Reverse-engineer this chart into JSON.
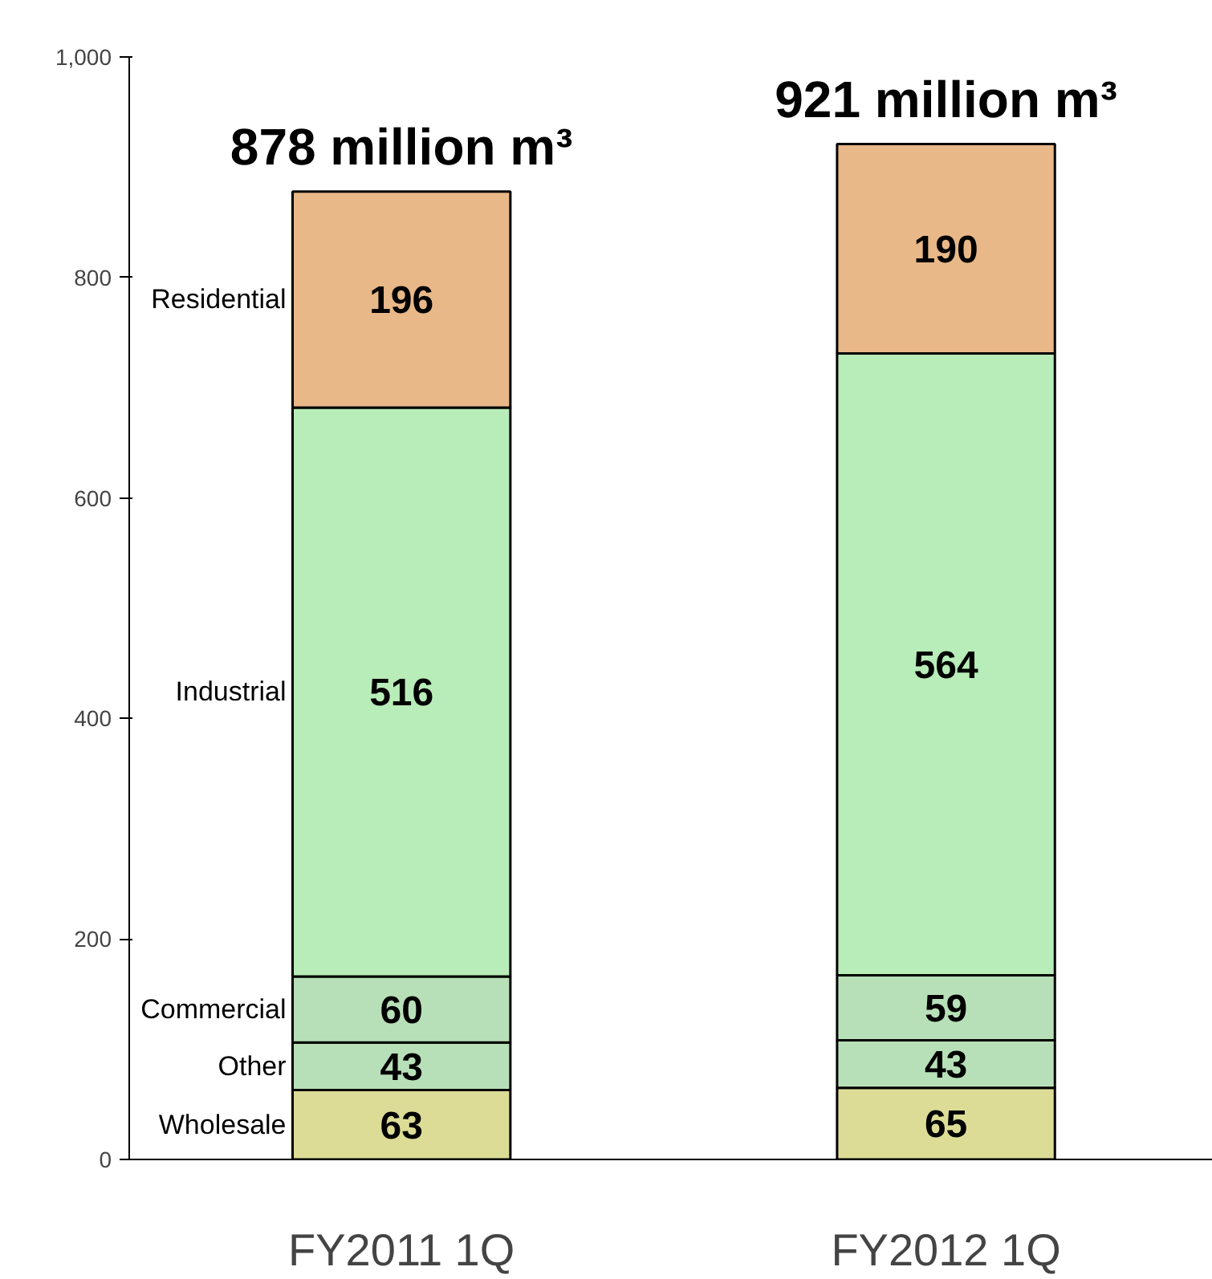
{
  "chart_data": {
    "type": "bar",
    "stacked": true,
    "categories": [
      "FY2011 1Q",
      "FY2012 1Q"
    ],
    "series": [
      {
        "name": "Wholesale",
        "color": "#dcdc96",
        "values": [
          63,
          65
        ]
      },
      {
        "name": "Other",
        "color": "#b8e0b8",
        "values": [
          43,
          43
        ]
      },
      {
        "name": "Commercial",
        "color": "#b8e0b8",
        "values": [
          60,
          59
        ]
      },
      {
        "name": "Industrial",
        "color": "#b8ecb8",
        "values": [
          516,
          564
        ]
      },
      {
        "name": "Residential",
        "color": "#e8b888",
        "values": [
          196,
          190
        ]
      }
    ],
    "data_labels": true,
    "totals": [
      "878 million m³",
      "921 million m³"
    ],
    "ylim": [
      0,
      1000
    ],
    "yticks": [
      0,
      200,
      400,
      600,
      800,
      {
        "value": 1000,
        "label": "1,000"
      }
    ],
    "grid": false,
    "legend": false
  }
}
